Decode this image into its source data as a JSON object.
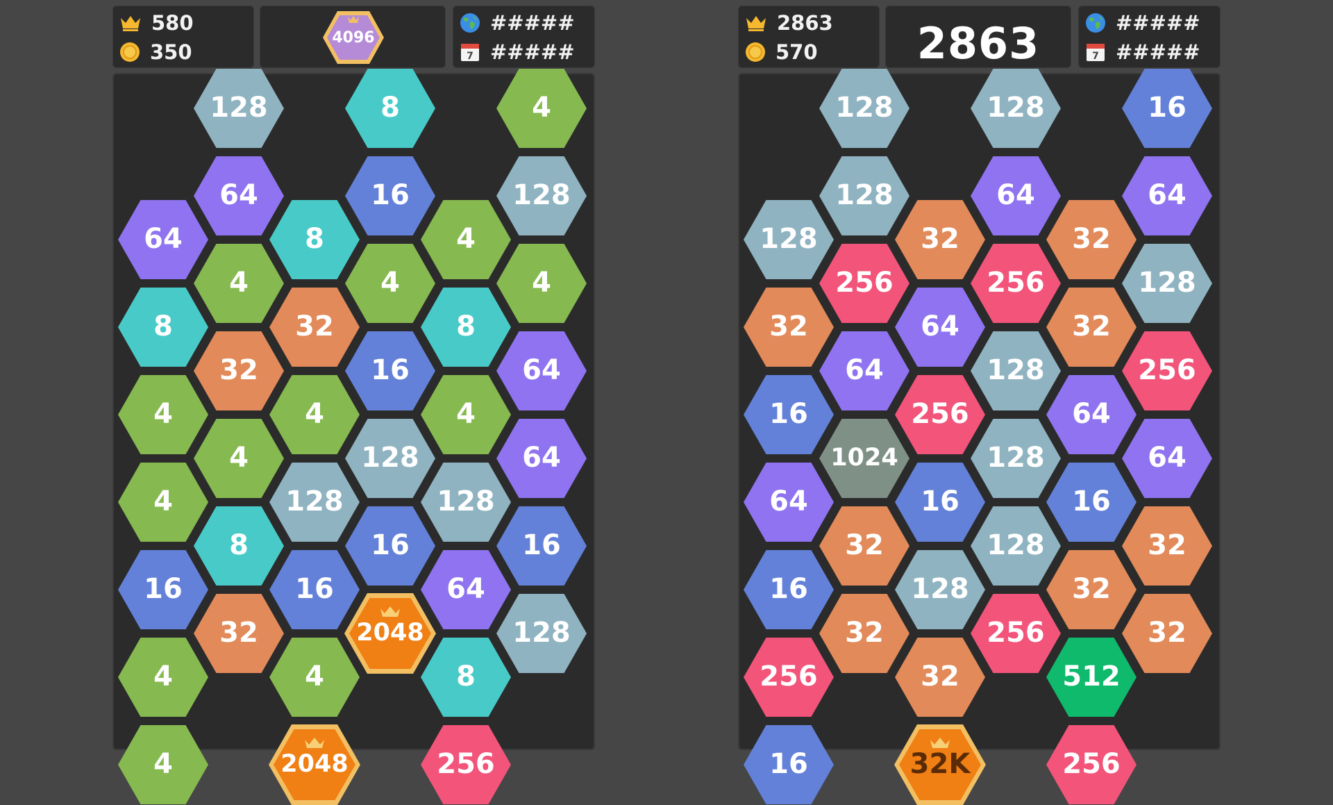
{
  "colors": {
    "4": "#86b94f",
    "8": "#48cbc8",
    "16": "#6381d9",
    "32": "#e28a59",
    "64": "#8f73f0",
    "128": "#8fb3c1",
    "256": "#f2547a",
    "512": "#0fba6c",
    "1024": "#7f9187",
    "2048": "#f07f14",
    "32K": "#f07f14",
    "gold_ring": "#f2c063",
    "board": "#2b2b2b",
    "background": "#464646"
  },
  "icons": {
    "crown": "crown-icon",
    "coin": "coin-icon",
    "globe": "globe-icon",
    "calendar": "calendar-icon"
  },
  "panels": [
    {
      "best_score": "580",
      "coins": "350",
      "goal_tile": "4096",
      "current_score": "",
      "world_rank": "#####",
      "daily_rank": "#####",
      "calendar_day": "7",
      "columns": [
        [
          "",
          "64",
          "8",
          "4",
          "4",
          "16",
          "4",
          "4"
        ],
        [
          "128",
          "64",
          "4",
          "32",
          "4",
          "8",
          "32"
        ],
        [
          "",
          "8",
          "32",
          "4",
          "128",
          "16",
          "4",
          "2048"
        ],
        [
          "8",
          "16",
          "4",
          "16",
          "128",
          "16",
          "2048"
        ],
        [
          "",
          "4",
          "8",
          "4",
          "128",
          "64",
          "8",
          "256"
        ],
        [
          "4",
          "128",
          "4",
          "64",
          "64",
          "16",
          "128"
        ]
      ]
    },
    {
      "best_score": "2863",
      "coins": "570",
      "goal_tile": "",
      "current_score": "2863",
      "world_rank": "#####",
      "daily_rank": "#####",
      "calendar_day": "7",
      "columns": [
        [
          "",
          "128",
          "32",
          "16",
          "64",
          "16",
          "256",
          "16"
        ],
        [
          "128",
          "128",
          "256",
          "64",
          "1024",
          "32",
          "32"
        ],
        [
          "",
          "32",
          "64",
          "256",
          "16",
          "128",
          "32",
          "32K"
        ],
        [
          "128",
          "64",
          "256",
          "128",
          "128",
          "128",
          "256"
        ],
        [
          "",
          "32",
          "32",
          "64",
          "16",
          "32",
          "512",
          "256"
        ],
        [
          "16",
          "64",
          "128",
          "256",
          "64",
          "32",
          "32"
        ]
      ]
    }
  ]
}
